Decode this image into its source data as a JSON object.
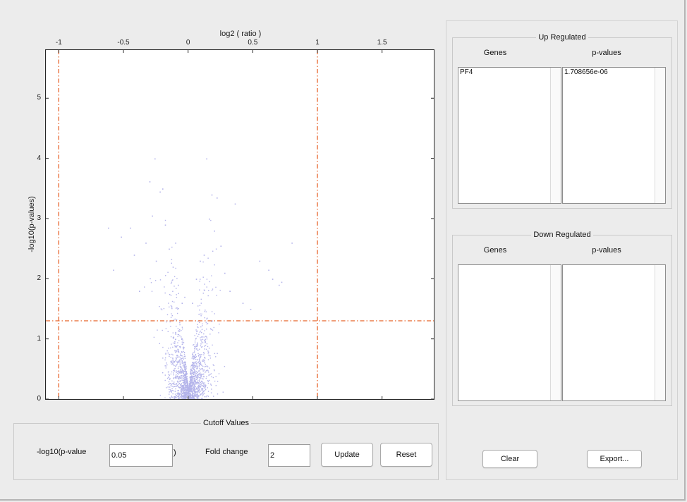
{
  "chart_data": {
    "type": "scatter",
    "title": "",
    "xlabel": "log2 ( ratio )",
    "ylabel": "-log10(p-values)",
    "xlim": [
      -1.1,
      1.9
    ],
    "ylim": [
      0,
      5.8
    ],
    "x_ticks": [
      "-1",
      "-0.5",
      "0",
      "0.5",
      "1",
      "1.5"
    ],
    "x_tick_values": [
      -1,
      -0.5,
      0,
      0.5,
      1,
      1.5
    ],
    "y_ticks": [
      "0",
      "1",
      "2",
      "3",
      "4",
      "5"
    ],
    "y_tick_values": [
      0,
      1,
      2,
      3,
      4,
      5
    ],
    "x_axis_location": "top",
    "grid": false,
    "point_color": "#b3b3ea",
    "cutoff_color": "#e8632b",
    "cutoff_lines": {
      "vertical": [
        -1,
        1
      ],
      "horizontal": [
        1.301
      ]
    },
    "series": [
      {
        "x": [
          -0.62,
          -0.58,
          -0.52,
          -0.45,
          -0.42,
          -0.38,
          -0.33,
          -0.3,
          -0.28,
          -0.26,
          -0.25,
          -0.22,
          -0.2,
          -0.18,
          -0.15,
          -0.12,
          -0.1,
          -0.08,
          -0.05,
          -0.03,
          0.03,
          0.06,
          0.09,
          0.12,
          0.14,
          0.16,
          0.18,
          0.2,
          0.22,
          0.25,
          0.28,
          0.32,
          0.36,
          0.42,
          0.48,
          0.55,
          0.62,
          0.65,
          0.7,
          0.72,
          0.8
        ],
        "y": [
          2.85,
          2.15,
          2.7,
          2.85,
          2.4,
          1.8,
          2.6,
          3.62,
          3.05,
          4.0,
          2.3,
          3.45,
          3.5,
          2.9,
          2.5,
          2.2,
          2.6,
          1.9,
          1.6,
          1.7,
          1.6,
          2.0,
          2.3,
          2.4,
          4.0,
          3.0,
          3.4,
          2.8,
          3.35,
          2.55,
          2.1,
          1.8,
          3.25,
          1.6,
          1.5,
          2.3,
          2.15,
          2.0,
          1.9,
          1.95,
          2.6
        ]
      }
    ]
  },
  "cutoff_panel": {
    "title": "Cutoff Values",
    "pvalue_label": "-log10(p-value",
    "pvalue_paren": ")",
    "pvalue_value": "0.05",
    "fold_label": "Fold change",
    "fold_value": "2",
    "update_label": "Update",
    "reset_label": "Reset"
  },
  "up_regulated": {
    "title": "Up Regulated",
    "genes_header": "Genes",
    "pvalues_header": "p-values",
    "genes": [
      "PF4"
    ],
    "pvalues": [
      "1.708656e-06"
    ]
  },
  "down_regulated": {
    "title": "Down Regulated",
    "genes_header": "Genes",
    "pvalues_header": "p-values",
    "genes": [],
    "pvalues": []
  },
  "actions": {
    "clear_label": "Clear",
    "export_label": "Export..."
  }
}
